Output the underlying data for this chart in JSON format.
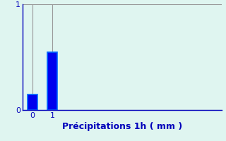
{
  "categories": [
    0,
    1
  ],
  "values": [
    0.15,
    0.55
  ],
  "bar_color": "#0000ee",
  "bar_edge_color": "#0066ff",
  "background_color": "#dff5f0",
  "xlabel": "Précipitations 1h ( mm )",
  "ylim": [
    0,
    1.0
  ],
  "xlim": [
    -0.5,
    9.5
  ],
  "yticks": [
    0,
    1
  ],
  "xticks": [
    0,
    1
  ],
  "grid_color": "#999999",
  "tick_color": "#0000bb",
  "xlabel_color": "#0000bb",
  "xlabel_fontsize": 9,
  "tick_fontsize": 8,
  "bar_width": 0.5
}
